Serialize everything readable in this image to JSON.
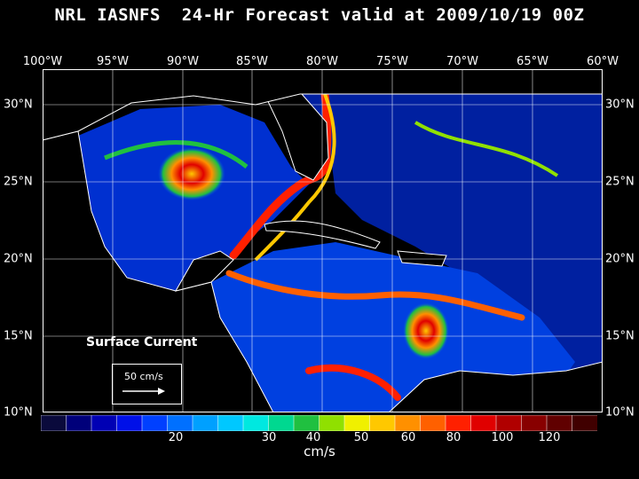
{
  "title": "NRL IASNFS  24-Hr Forecast valid at 2009/10/19 00Z",
  "lon_labels": [
    "100°W",
    "95°W",
    "90°W",
    "85°W",
    "80°W",
    "75°W",
    "70°W",
    "65°W",
    "60°W"
  ],
  "lat_labels": [
    "30°N",
    "25°N",
    "20°N",
    "15°N",
    "10°N"
  ],
  "layer_label": "Surface Current",
  "legend": {
    "arrow_label": "50 cm/s"
  },
  "colorbar": {
    "ticks": [
      "20",
      "30",
      "40",
      "50",
      "60",
      "80",
      "100",
      "120"
    ],
    "units": "cm/s",
    "colors": [
      "#0a0a3c",
      "#00007a",
      "#0000b4",
      "#0010e8",
      "#0040ff",
      "#0070ff",
      "#00a0ff",
      "#00c8ff",
      "#00e8e0",
      "#00d890",
      "#20c040",
      "#90e000",
      "#f0f000",
      "#ffc800",
      "#ff9000",
      "#ff6000",
      "#ff2000",
      "#e00000",
      "#b00000",
      "#880000",
      "#600000",
      "#400000"
    ]
  },
  "colors": {
    "land": "#000000",
    "coast": "#ffffff",
    "grid": "#ffffff"
  }
}
